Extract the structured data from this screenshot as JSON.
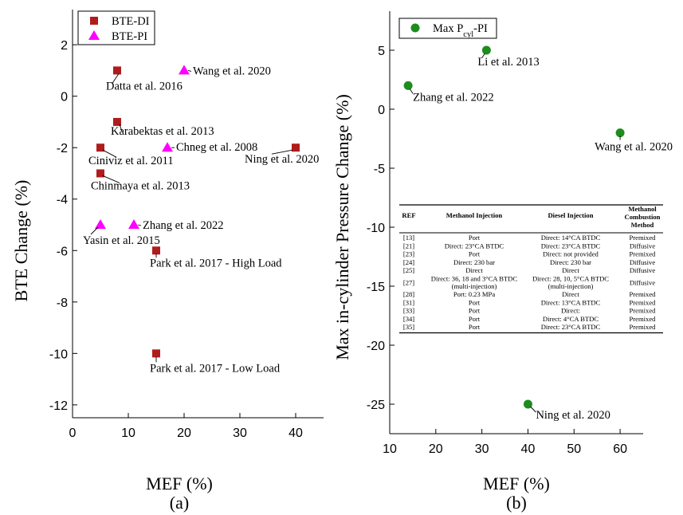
{
  "chart_data": [
    {
      "type": "scatter",
      "panel_label": "(a)",
      "xlabel": "MEF (%)",
      "ylabel": "BTE Change (%)",
      "xlim": [
        0,
        45
      ],
      "ylim": [
        -12.5,
        2.5
      ],
      "xticks": [
        0,
        10,
        20,
        30,
        40
      ],
      "yticks": [
        2,
        0,
        -2,
        -4,
        -6,
        -8,
        -10,
        -12
      ],
      "grid": false,
      "legend_position": "top-left",
      "series": [
        {
          "name": "BTE-DI",
          "marker": "square",
          "color": "#b01c1c",
          "points": [
            {
              "x": 8,
              "y": 1,
              "label": "Datta et al. 2016"
            },
            {
              "x": 8,
              "y": -1,
              "label": "Karabektas et al. 2013"
            },
            {
              "x": 5,
              "y": -2,
              "label": "Ciniviz et al. 2011"
            },
            {
              "x": 5,
              "y": -3,
              "label": "Chinmaya et al. 2013"
            },
            {
              "x": 40,
              "y": -2,
              "label": "Ning et al. 2020"
            },
            {
              "x": 15,
              "y": -6,
              "label": "Park et al. 2017 - High Load"
            },
            {
              "x": 15,
              "y": -10,
              "label": "Park et al. 2017 - Low Load"
            }
          ]
        },
        {
          "name": "BTE-PI",
          "marker": "triangle",
          "color": "#ff00ff",
          "points": [
            {
              "x": 20,
              "y": 1,
              "label": "Wang et al. 2020"
            },
            {
              "x": 17,
              "y": -2,
              "label": "Chneg et al. 2008"
            },
            {
              "x": 5,
              "y": -5,
              "label": "Yasin et al. 2015"
            },
            {
              "x": 11,
              "y": -5,
              "label": "Zhang et al. 2022"
            }
          ]
        }
      ]
    },
    {
      "type": "scatter",
      "panel_label": "(b)",
      "xlabel": "MEF (%)",
      "ylabel": "Max in-cylinder Pressure Change (%)",
      "xlim": [
        10,
        65
      ],
      "ylim": [
        -27.5,
        7.5
      ],
      "xticks": [
        10,
        20,
        30,
        40,
        50,
        60
      ],
      "yticks": [
        5,
        0,
        -5,
        -10,
        -15,
        -20,
        -25
      ],
      "grid": false,
      "legend_position": "top-left",
      "series": [
        {
          "name": "Max P",
          "name_sub": "cyl",
          "name_suffix": "-PI",
          "marker": "circle",
          "color": "#1e8c1e",
          "points": [
            {
              "x": 31,
              "y": 5,
              "label": "Li et al. 2013"
            },
            {
              "x": 14,
              "y": 2,
              "label": "Zhang et al. 2022"
            },
            {
              "x": 60,
              "y": -2,
              "label": "Wang et al. 2020"
            },
            {
              "x": 40,
              "y": -25,
              "label": "Ning et al. 2020"
            }
          ]
        }
      ]
    }
  ],
  "inset_table": {
    "headers": [
      "REF",
      "Methanol Injection",
      "Diesel Injection",
      "Methanol Combustion Method"
    ],
    "rows": [
      [
        "[13]",
        "Port",
        "Direct: 14°CA BTDC",
        "Premixed"
      ],
      [
        "[21]",
        "Direct: 23°CA BTDC",
        "Direct: 23°CA BTDC",
        "Diffusive"
      ],
      [
        "[23]",
        "Port",
        "Direct: not provided",
        "Premixed"
      ],
      [
        "[24]",
        "Direct: 230 bar",
        "Direct: 230 bar",
        "Diffusive"
      ],
      [
        "[25]",
        "Direct",
        "Direct",
        "Diffusive"
      ],
      [
        "[27]",
        "Direct: 36, 18 and 3°CA BTDC (multi-injection)",
        "Direct: 28, 10, 5°CA BTDC (multi-injection)",
        "Diffusive"
      ],
      [
        "[28]",
        "Port: 0.23 MPa",
        "Direct",
        "Premixed"
      ],
      [
        "[31]",
        "Port",
        "Direct: 13°CA BTDC",
        "Premixed"
      ],
      [
        "[33]",
        "Port",
        "Direct:",
        "Premixed"
      ],
      [
        "[34]",
        "Port",
        "Direct: 4°CA BTDC",
        "Premixed"
      ],
      [
        "[35]",
        "Port",
        "Direct: 23°CA BTDC",
        "Premixed"
      ]
    ]
  }
}
